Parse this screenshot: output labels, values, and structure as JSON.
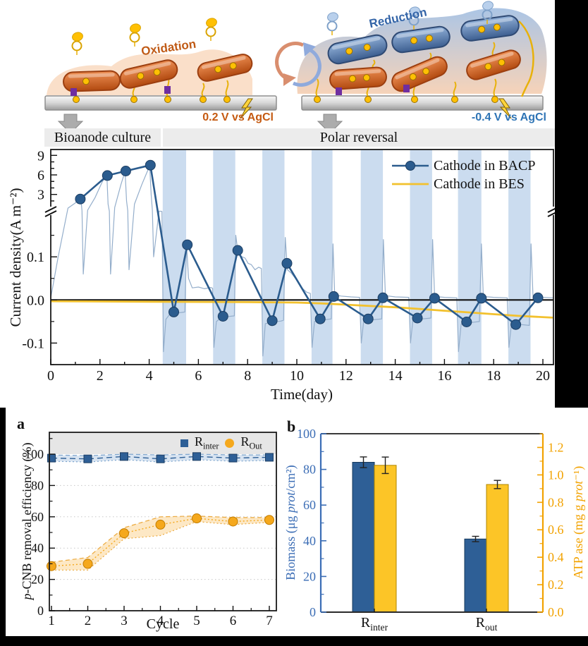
{
  "schematic": {
    "oxidation_label": "Oxidation",
    "oxidation_voltage": "0.2 V vs AgCl",
    "reduction_label": "Reduction",
    "reduction_voltage": "-0.4 V vs AgCl"
  },
  "phases": {
    "left": "Bioanode culture",
    "right": "Polar reversal"
  },
  "chart_data": [
    {
      "id": "current_density",
      "type": "line",
      "xlabel": "Time(day)",
      "ylabel": "Current density(A m⁻²)",
      "x_range": [
        0,
        20.43
      ],
      "x_major_ticks": [
        0,
        2,
        4,
        6,
        8,
        10,
        12,
        14,
        16,
        18,
        20
      ],
      "y_axis_break": true,
      "y_top": {
        "range": [
          0.8,
          9.9
        ],
        "major_ticks": [
          3,
          6,
          9
        ]
      },
      "y_bottom": {
        "range": [
          -0.15,
          0.205
        ],
        "major_ticks": [
          -0.1,
          0,
          0.1
        ]
      },
      "shaded_band_color": "#CBDCEF",
      "shaded_bands": [
        [
          4.55,
          5.5
        ],
        [
          6.6,
          7.5
        ],
        [
          8.6,
          9.5
        ],
        [
          10.6,
          11.45
        ],
        [
          12.6,
          13.5
        ],
        [
          14.6,
          15.5
        ],
        [
          16.55,
          17.5
        ],
        [
          18.6,
          19.5
        ]
      ],
      "legend": [
        {
          "label": "Cathode in BACP",
          "color": "#2B5C8E",
          "marker": "circle-line"
        },
        {
          "label": "Cathode in BES",
          "color": "#F2C12E",
          "marker": "line"
        }
      ],
      "series": {
        "bacp_markers": [
          [
            1.2,
            2.3
          ],
          [
            2.3,
            5.9
          ],
          [
            3.05,
            6.6
          ],
          [
            4.05,
            7.5
          ],
          [
            5.0,
            -0.028
          ],
          [
            5.55,
            0.128
          ],
          [
            7.0,
            -0.038
          ],
          [
            7.6,
            0.115
          ],
          [
            9.0,
            -0.048
          ],
          [
            9.6,
            0.085
          ],
          [
            10.95,
            -0.044
          ],
          [
            11.5,
            0.008
          ],
          [
            12.9,
            -0.044
          ],
          [
            13.5,
            0.005
          ],
          [
            14.9,
            -0.042
          ],
          [
            15.6,
            0.004
          ],
          [
            16.9,
            -0.051
          ],
          [
            17.5,
            0.004
          ],
          [
            18.9,
            -0.057
          ],
          [
            19.8,
            0.005
          ]
        ],
        "bes_line": [
          [
            0,
            -0.003
          ],
          [
            4,
            -0.004
          ],
          [
            8,
            -0.005
          ],
          [
            10,
            -0.006
          ],
          [
            11,
            -0.008
          ],
          [
            12,
            -0.011
          ],
          [
            13,
            -0.014
          ],
          [
            14,
            -0.017
          ],
          [
            15,
            -0.021
          ],
          [
            16,
            -0.025
          ],
          [
            17,
            -0.029
          ],
          [
            18,
            -0.033
          ],
          [
            19,
            -0.037
          ],
          [
            20.4,
            -0.041
          ]
        ],
        "raw_trace": [
          [
            0,
            0.005
          ],
          [
            0.3,
            0.1
          ],
          [
            0.7,
            0.9
          ],
          [
            1,
            1.7
          ],
          [
            1.15,
            2.35
          ],
          [
            1.22,
            2.4
          ],
          [
            1.27,
            0.4
          ],
          [
            1.32,
            0.06
          ],
          [
            1.5,
            0.5
          ],
          [
            1.8,
            2.5
          ],
          [
            2.1,
            5
          ],
          [
            2.28,
            5.85
          ],
          [
            2.33,
            1.5
          ],
          [
            2.38,
            0.3
          ],
          [
            2.43,
            0.06
          ],
          [
            2.6,
            1
          ],
          [
            2.85,
            4.5
          ],
          [
            3.02,
            6.55
          ],
          [
            3.08,
            2
          ],
          [
            3.13,
            0.4
          ],
          [
            3.18,
            0.07
          ],
          [
            3.4,
            1.5
          ],
          [
            3.7,
            4.5
          ],
          [
            4.02,
            7.4
          ],
          [
            4.08,
            3
          ],
          [
            4.13,
            0.5
          ],
          [
            4.18,
            0.1
          ],
          [
            4.4,
            0.3
          ],
          [
            4.52,
            0.25
          ],
          [
            4.58,
            -0.12
          ],
          [
            4.68,
            -0.045
          ],
          [
            4.85,
            -0.032
          ],
          [
            5.2,
            -0.03
          ],
          [
            5.45,
            -0.028
          ],
          [
            5.52,
            0.13
          ],
          [
            5.6,
            0.05
          ],
          [
            5.75,
            0.028
          ],
          [
            6,
            0.03
          ],
          [
            6.25,
            0.026
          ],
          [
            6.5,
            0.029
          ],
          [
            6.58,
            0.027
          ],
          [
            6.63,
            -0.11
          ],
          [
            6.73,
            -0.05
          ],
          [
            6.95,
            -0.04
          ],
          [
            7.3,
            -0.038
          ],
          [
            7.46,
            -0.037
          ],
          [
            7.52,
            0.15
          ],
          [
            7.62,
            0.105
          ],
          [
            7.78,
            0.1
          ],
          [
            7.9,
            0.097
          ],
          [
            8.02,
            0.085
          ],
          [
            8.15,
            0.082
          ],
          [
            8.3,
            0.07
          ],
          [
            8.45,
            0.076
          ],
          [
            8.56,
            0.073
          ],
          [
            8.62,
            -0.13
          ],
          [
            8.72,
            -0.055
          ],
          [
            9,
            -0.051
          ],
          [
            9.35,
            -0.049
          ],
          [
            9.46,
            -0.047
          ],
          [
            9.53,
            0.145
          ],
          [
            9.62,
            0.07
          ],
          [
            9.78,
            0.062
          ],
          [
            10,
            0.046
          ],
          [
            10.2,
            0.028
          ],
          [
            10.4,
            0.018
          ],
          [
            10.55,
            0.015
          ],
          [
            10.62,
            -0.11
          ],
          [
            10.72,
            -0.05
          ],
          [
            11,
            -0.047
          ],
          [
            11.4,
            -0.044
          ],
          [
            11.47,
            0.13
          ],
          [
            11.54,
            0.012
          ],
          [
            11.8,
            0.009
          ],
          [
            12.2,
            0.007
          ],
          [
            12.55,
            0.006
          ],
          [
            12.62,
            -0.1
          ],
          [
            12.72,
            -0.048
          ],
          [
            13.1,
            -0.046
          ],
          [
            13.45,
            -0.044
          ],
          [
            13.52,
            0.14
          ],
          [
            13.6,
            0.01
          ],
          [
            14,
            0.007
          ],
          [
            14.55,
            0.006
          ],
          [
            14.62,
            -0.1
          ],
          [
            14.72,
            -0.046
          ],
          [
            15.1,
            -0.044
          ],
          [
            15.45,
            -0.042
          ],
          [
            15.52,
            0.14
          ],
          [
            15.6,
            0.008
          ],
          [
            16,
            0.006
          ],
          [
            16.5,
            0.005
          ],
          [
            16.57,
            -0.12
          ],
          [
            16.68,
            -0.056
          ],
          [
            17,
            -0.053
          ],
          [
            17.42,
            -0.05
          ],
          [
            17.5,
            0.13
          ],
          [
            17.58,
            0.008
          ],
          [
            18,
            0.006
          ],
          [
            18.55,
            0.005
          ],
          [
            18.62,
            -0.11
          ],
          [
            18.72,
            -0.058
          ],
          [
            19.1,
            -0.057
          ],
          [
            19.45,
            -0.059
          ],
          [
            19.52,
            0.13
          ],
          [
            19.6,
            0.008
          ],
          [
            20,
            0.006
          ],
          [
            20.4,
            0.005
          ]
        ]
      }
    },
    {
      "id": "removal_efficiency",
      "type": "scatter",
      "panel_label": "a",
      "xlabel": "Cycle",
      "ylabel": {
        "italic": "p",
        "rest": "-CNB removal efficiency (%)"
      },
      "x_ticks": [
        1,
        2,
        3,
        4,
        5,
        6,
        7
      ],
      "y_ticks": [
        0,
        20,
        40,
        60,
        80,
        100
      ],
      "ylim": [
        0,
        114
      ],
      "series": [
        {
          "name_base": "R",
          "name_sub": "inter",
          "marker": "square",
          "color": "#2E5F96",
          "band_fill": "rgba(125,165,210,0.30)",
          "edge_color": "#7DA5CE",
          "values": [
            97.5,
            97,
            98.5,
            97,
            98.5,
            97.5,
            98
          ],
          "band_upper": [
            99.5,
            99,
            100,
            99.5,
            100,
            99.5,
            99.5
          ],
          "band_lower": [
            95.5,
            95,
            96.5,
            95,
            96.5,
            95.5,
            96
          ]
        },
        {
          "name_base": "R",
          "name_sub": "Out",
          "marker": "circle",
          "color": "#F5A81C",
          "band_fill": "rgba(250,198,110,0.40)",
          "edge_color": "#ECA93C",
          "values": [
            28.5,
            30,
            49.5,
            55,
            59,
            57,
            58
          ],
          "band_upper": [
            31,
            34,
            53,
            60,
            60.5,
            59.5,
            59.5
          ],
          "band_lower": [
            26,
            26,
            46,
            48,
            57,
            55,
            56.5
          ]
        }
      ]
    },
    {
      "id": "biomass_atp",
      "type": "bar",
      "panel_label": "b",
      "categories": [
        {
          "base": "R",
          "sub": "inter"
        },
        {
          "base": "R",
          "sub": "out"
        }
      ],
      "left_axis": {
        "label_pre": "Biomass (μg ",
        "label_italic": "prot",
        "label_post": "/cm²)",
        "color": "#3B6DB5",
        "ticks": [
          0,
          20,
          40,
          60,
          80,
          100
        ],
        "range": [
          0,
          100
        ]
      },
      "right_axis": {
        "label_pre": "ATP ase (mg g ",
        "label_italic": "prot",
        "label_post": "⁻¹)",
        "color": "#F2A200",
        "ticks": [
          "0.0",
          "0.2",
          "0.4",
          "0.6",
          "0.8",
          "1.0",
          "1.2"
        ],
        "range": [
          0,
          1.3
        ]
      },
      "series": [
        {
          "name": "Biomass",
          "axis": "left",
          "color": "#2E5F96",
          "values": [
            84,
            41
          ],
          "errors": [
            3,
            1.5
          ]
        },
        {
          "name": "ATP ase",
          "axis": "right",
          "color": "#FCC527",
          "values": [
            1.07,
            0.93
          ],
          "errors": [
            0.06,
            0.03
          ]
        }
      ]
    }
  ]
}
